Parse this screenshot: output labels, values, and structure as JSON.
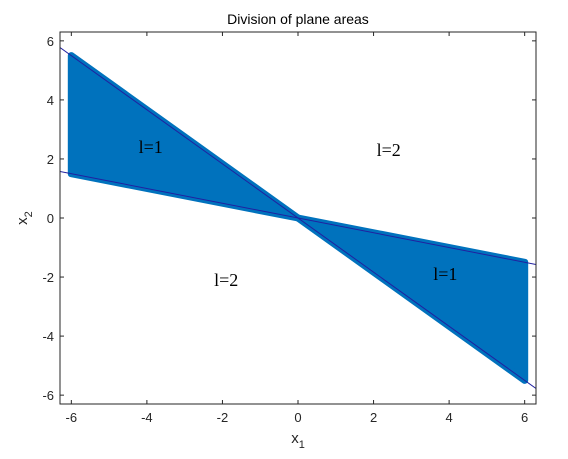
{
  "chart_data": {
    "type": "area",
    "title": "Division of plane areas",
    "xlabel": {
      "base": "x",
      "subscript": "1"
    },
    "ylabel": {
      "base": "x",
      "subscript": "2"
    },
    "xlim": [
      -6.3,
      6.3
    ],
    "ylim": [
      -6.3,
      6.3
    ],
    "xticks": [
      -6,
      -4,
      -2,
      0,
      2,
      4,
      6
    ],
    "yticks": [
      -6,
      -4,
      -2,
      0,
      2,
      4,
      6
    ],
    "xtick_labels": [
      "-6",
      "-4",
      "-2",
      "0",
      "2",
      "4",
      "6"
    ],
    "ytick_labels": [
      "-6",
      "-4",
      "-2",
      "0",
      "2",
      "4",
      "6"
    ],
    "grid": false,
    "fill_color": "#0072BD",
    "boundary_line_color": "#2020A0",
    "regions": [
      {
        "label": "l=1",
        "polygon": [
          [
            -6,
            5.5
          ],
          [
            -6,
            1.5
          ],
          [
            0,
            0
          ]
        ]
      },
      {
        "label": "l=1",
        "polygon": [
          [
            6,
            -1.5
          ],
          [
            6,
            -5.5
          ],
          [
            0,
            0
          ]
        ]
      }
    ],
    "boundary_lines": [
      {
        "slope": -0.25,
        "x": [
          -6.3,
          6.3
        ]
      },
      {
        "slope": -0.9167,
        "x": [
          -6.3,
          6.3
        ]
      }
    ],
    "annotations": [
      {
        "text": "l=1",
        "x": -3.9,
        "y": 2.2
      },
      {
        "text": "l=2",
        "x": 2.4,
        "y": 2.1
      },
      {
        "text": "l=2",
        "x": -1.9,
        "y": -2.3
      },
      {
        "text": "l=1",
        "x": 3.9,
        "y": -2.1
      }
    ]
  }
}
